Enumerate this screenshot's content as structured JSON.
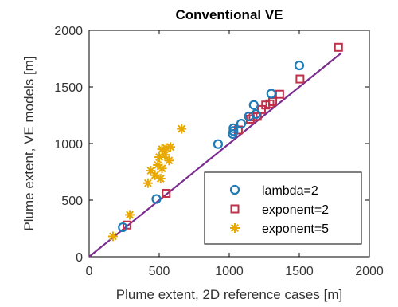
{
  "chart_data": {
    "type": "scatter",
    "title": "Conventional VE",
    "xlabel": "Plume extent, 2D reference cases [m]",
    "ylabel": "Plume extent, VE models [m]",
    "xlim": [
      0,
      2000
    ],
    "ylim": [
      0,
      2000
    ],
    "x_ticks": [
      0,
      500,
      1000,
      1500,
      2000
    ],
    "y_ticks": [
      0,
      500,
      1000,
      1500,
      2000
    ],
    "grid": false,
    "legend_position": "bottom-right",
    "reference_line": {
      "label": "",
      "x": [
        0,
        1800
      ],
      "y": [
        0,
        1800
      ],
      "color": "#7b2d8e"
    },
    "series": [
      {
        "name": "lambda=2",
        "marker": "circle",
        "color": "#1f7ab8",
        "points": [
          [
            240,
            260
          ],
          [
            480,
            510
          ],
          [
            920,
            995
          ],
          [
            1025,
            1085
          ],
          [
            1030,
            1110
          ],
          [
            1030,
            1135
          ],
          [
            1085,
            1175
          ],
          [
            1140,
            1240
          ],
          [
            1175,
            1340
          ],
          [
            1190,
            1260
          ],
          [
            1300,
            1440
          ],
          [
            1500,
            1690
          ]
        ]
      },
      {
        "name": "exponent=2",
        "marker": "square",
        "color": "#c0304a",
        "points": [
          [
            270,
            280
          ],
          [
            550,
            560
          ],
          [
            1065,
            1120
          ],
          [
            1150,
            1215
          ],
          [
            1170,
            1235
          ],
          [
            1200,
            1240
          ],
          [
            1230,
            1300
          ],
          [
            1260,
            1340
          ],
          [
            1290,
            1350
          ],
          [
            1310,
            1370
          ],
          [
            1360,
            1435
          ],
          [
            1505,
            1570
          ],
          [
            1780,
            1850
          ]
        ]
      },
      {
        "name": "exponent=5",
        "marker": "asterisk",
        "color": "#e8a800",
        "points": [
          [
            170,
            180
          ],
          [
            290,
            370
          ],
          [
            420,
            650
          ],
          [
            440,
            760
          ],
          [
            470,
            720
          ],
          [
            490,
            810
          ],
          [
            500,
            880
          ],
          [
            510,
            690
          ],
          [
            520,
            780
          ],
          [
            520,
            950
          ],
          [
            540,
            900
          ],
          [
            550,
            960
          ],
          [
            570,
            850
          ],
          [
            580,
            970
          ],
          [
            660,
            1130
          ]
        ]
      }
    ]
  }
}
